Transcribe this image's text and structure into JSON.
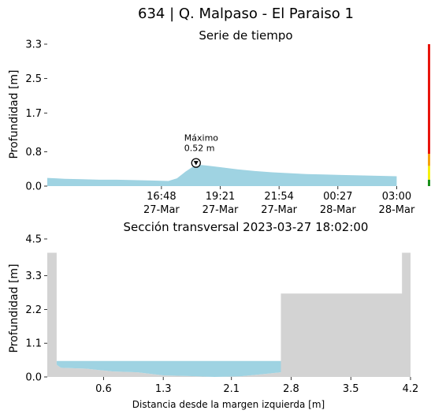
{
  "title": "634 | Q. Malpaso - El Paraiso 1",
  "colors": {
    "water": "#9fd3e2",
    "terrain": "#d3d3d3",
    "level_red": "#e8140c",
    "level_orange": "#f5a30e",
    "level_yellow": "#f5f00e",
    "level_green": "#1a8f1a"
  },
  "chart_data": [
    {
      "type": "area",
      "title": "Serie de tiempo",
      "xlabel": "",
      "ylabel": "Profundidad [m]",
      "ylim": [
        0,
        3.3
      ],
      "xlim": [
        0,
        21
      ],
      "y_ticks": [
        {
          "value": 0.0,
          "label": "0.0"
        },
        {
          "value": 0.8,
          "label": "0.8"
        },
        {
          "value": 1.7,
          "label": "1.7"
        },
        {
          "value": 2.5,
          "label": "2.5"
        },
        {
          "value": 3.3,
          "label": "3.3"
        }
      ],
      "x_ticks": [
        {
          "value": 6.6,
          "line1": "16:48",
          "line2": "27-Mar"
        },
        {
          "value": 10.0,
          "line1": "19:21",
          "line2": "27-Mar"
        },
        {
          "value": 13.4,
          "line1": "21:54",
          "line2": "27-Mar"
        },
        {
          "value": 16.8,
          "line1": "00:27",
          "line2": "28-Mar"
        },
        {
          "value": 20.2,
          "line1": "03:00",
          "line2": "28-Mar"
        }
      ],
      "series": [
        {
          "x": [
            0,
            0.5,
            1,
            2,
            3,
            4,
            5,
            6,
            7,
            7.5,
            8.0,
            8.3,
            8.6,
            9.2,
            10,
            11,
            12,
            13,
            14,
            15,
            16,
            17,
            18,
            19,
            20.2
          ],
          "y": [
            0.19,
            0.18,
            0.17,
            0.16,
            0.15,
            0.15,
            0.14,
            0.13,
            0.12,
            0.18,
            0.34,
            0.42,
            0.5,
            0.48,
            0.44,
            0.39,
            0.35,
            0.32,
            0.3,
            0.28,
            0.27,
            0.26,
            0.25,
            0.24,
            0.23
          ]
        }
      ],
      "annotation": {
        "label": "Máximo",
        "value_label": "0.52 m",
        "x": 8.6,
        "y": 0.52
      },
      "level_bar": [
        {
          "from": 0.0,
          "to": 0.15,
          "color": "#1a8f1a"
        },
        {
          "from": 0.15,
          "to": 0.47,
          "color": "#f5f00e"
        },
        {
          "from": 0.47,
          "to": 0.75,
          "color": "#f5a30e"
        },
        {
          "from": 0.75,
          "to": 3.3,
          "color": "#e8140c"
        }
      ]
    },
    {
      "type": "area",
      "title": "Sección transversal 2023-03-27 18:02:00",
      "xlabel": "Distancia desde la margen izquierda [m]",
      "ylabel": "Profundidad [m]",
      "xlim": [
        -0.06,
        4.2
      ],
      "ylim": [
        0,
        4.5
      ],
      "x_ticks": [
        {
          "value": 0.6,
          "label": "0.6"
        },
        {
          "value": 1.3,
          "label": "1.3"
        },
        {
          "value": 2.1,
          "label": "2.1"
        },
        {
          "value": 2.8,
          "label": "2.8"
        },
        {
          "value": 3.5,
          "label": "3.5"
        },
        {
          "value": 4.2,
          "label": "4.2"
        }
      ],
      "y_ticks": [
        {
          "value": 0.0,
          "label": "0.0"
        },
        {
          "value": 1.1,
          "label": "1.1"
        },
        {
          "value": 2.2,
          "label": "2.2"
        },
        {
          "value": 3.3,
          "label": "3.3"
        },
        {
          "value": 4.5,
          "label": "4.5"
        }
      ],
      "terrain": {
        "x": [
          -0.06,
          0.05,
          0.05,
          0.1,
          0.4,
          0.7,
          1.0,
          1.3,
          1.6,
          1.9,
          2.2,
          2.5,
          2.68,
          2.68,
          4.1,
          4.1,
          4.2
        ],
        "y": [
          4.05,
          4.05,
          0.4,
          0.3,
          0.27,
          0.18,
          0.15,
          0.05,
          0.03,
          0.0,
          0.02,
          0.1,
          0.15,
          2.72,
          2.72,
          4.05,
          4.05
        ]
      },
      "water_level": 0.52,
      "water_x": [
        0.05,
        2.68
      ]
    }
  ]
}
